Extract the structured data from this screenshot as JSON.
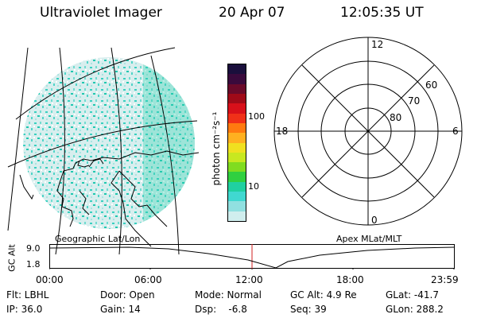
{
  "header": {
    "instrument": "Ultraviolet Imager",
    "date": "20 Apr 07",
    "time": "12:05:35 UT"
  },
  "left_panel": {
    "caption": "Geographic Lat/Lon"
  },
  "right_panel": {
    "caption": "Apex MLat/MLT",
    "mlt_labels": {
      "top": "12",
      "left": "18",
      "right": "6",
      "bottom": "0"
    },
    "mlat_labels": [
      "60",
      "70",
      "80"
    ]
  },
  "colorbar": {
    "unit_label": "photon cm⁻²s⁻¹",
    "ticks": [
      "100",
      "10"
    ],
    "colors": [
      "#1a0f3c",
      "#3a0a3c",
      "#6a0a2a",
      "#a00a18",
      "#d8101a",
      "#f03018",
      "#ff7a10",
      "#ffb020",
      "#f0e020",
      "#c8e820",
      "#80dc20",
      "#30d040",
      "#20d0a0",
      "#40d8d0",
      "#90e0e0",
      "#d0eeee"
    ]
  },
  "altitude_plot": {
    "ylabel": "GC Alt",
    "yticks": [
      "9.0",
      "1.8"
    ],
    "xticks": [
      "00:00",
      "06:00",
      "12:00",
      "18:00",
      "23:59"
    ],
    "marker_color": "#d02020"
  },
  "status": {
    "rows": [
      [
        "Flt: LBHL",
        "Door: Open",
        "Mode: Normal",
        "GC Alt: 4.9 Re",
        "GLat: -41.7"
      ],
      [
        "IP: 36.0",
        "Gain: 14",
        "Dsp:    -6.8",
        "Seq: 39",
        "GLon: 288.2"
      ]
    ]
  }
}
